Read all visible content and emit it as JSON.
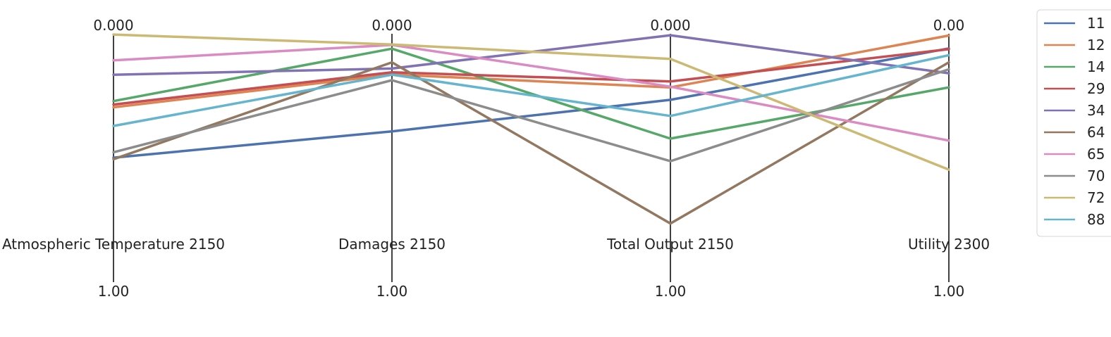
{
  "chart_data": {
    "type": "parallel-coordinates",
    "title": "",
    "axes": [
      {
        "label": "Atmospheric Temperature 2150",
        "top_tick": "0.000",
        "bottom_tick": "1.00"
      },
      {
        "label": "Damages 2150",
        "top_tick": "0.000",
        "bottom_tick": "1.00"
      },
      {
        "label": "Total Output 2150",
        "top_tick": "0.000",
        "bottom_tick": "1.00"
      },
      {
        "label": "Utility 2300",
        "top_tick": "0.00",
        "bottom_tick": "1.00"
      }
    ],
    "series": [
      {
        "name": "11",
        "color": "#4c72b0",
        "values": [
          0.499,
          0.393,
          0.266,
          0.059
        ]
      },
      {
        "name": "12",
        "color": "#dd8452",
        "values": [
          0.296,
          0.164,
          0.216,
          0.007
        ]
      },
      {
        "name": "14",
        "color": "#55a868",
        "values": [
          0.271,
          0.06,
          0.422,
          0.216
        ]
      },
      {
        "name": "29",
        "color": "#c44e52",
        "values": [
          0.285,
          0.155,
          0.192,
          0.062
        ]
      },
      {
        "name": "34",
        "color": "#8172b3",
        "values": [
          0.165,
          0.14,
          0.006,
          0.159
        ]
      },
      {
        "name": "64",
        "color": "#937860",
        "values": [
          0.505,
          0.115,
          0.764,
          0.115
        ]
      },
      {
        "name": "65",
        "color": "#da8bc3",
        "values": [
          0.107,
          0.045,
          0.213,
          0.43
        ]
      },
      {
        "name": "70",
        "color": "#8c8c8c",
        "values": [
          0.477,
          0.187,
          0.513,
          0.143
        ]
      },
      {
        "name": "72",
        "color": "#ccb974",
        "values": [
          0.003,
          0.043,
          0.101,
          0.547
        ]
      },
      {
        "name": "88",
        "color": "#64b5cd",
        "values": [
          0.371,
          0.165,
          0.331,
          0.086
        ]
      }
    ],
    "legend": {
      "position": "right"
    },
    "grid": false
  }
}
